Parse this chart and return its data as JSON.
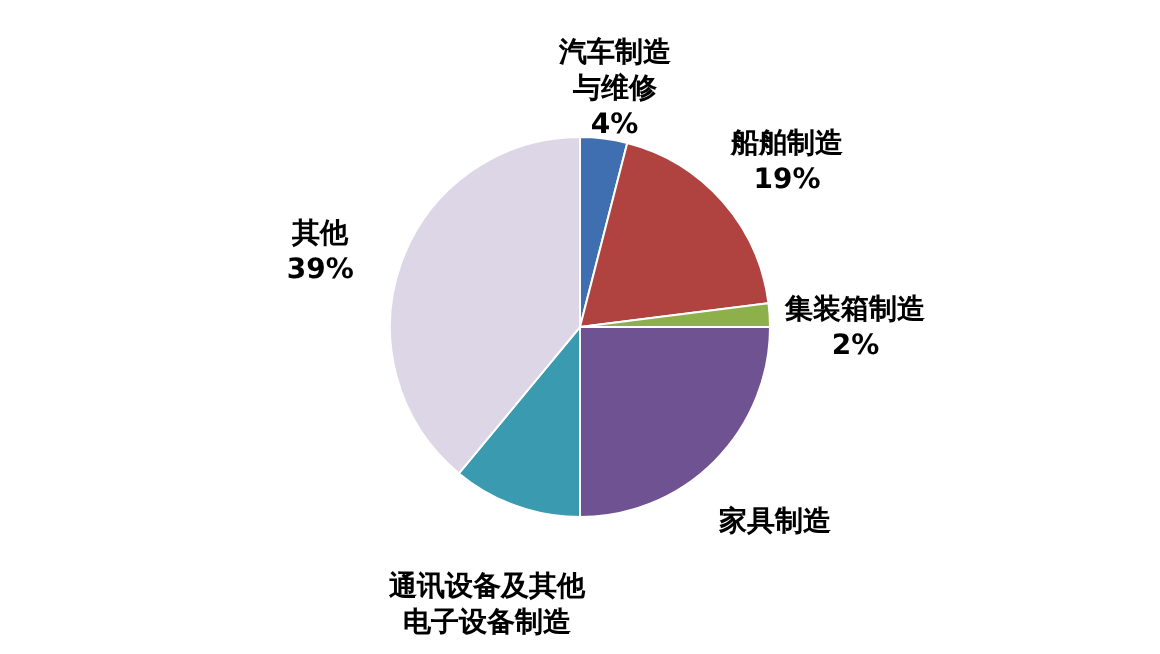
{
  "chart_data": {
    "type": "pie",
    "categories": [
      "汽车制造与维修",
      "船舶制造",
      "集装箱制造",
      "家具制造",
      "通讯设备及其他电子设备制造",
      "其他"
    ],
    "values": [
      4,
      19,
      2,
      25,
      11,
      39
    ],
    "colors": [
      "#3f6fb0",
      "#b0423f",
      "#8db04a",
      "#6f5291",
      "#3a9bb0",
      "#dcd6e6"
    ],
    "value_labels": [
      "4%",
      "19%",
      "2%",
      null,
      null,
      "39%"
    ]
  }
}
